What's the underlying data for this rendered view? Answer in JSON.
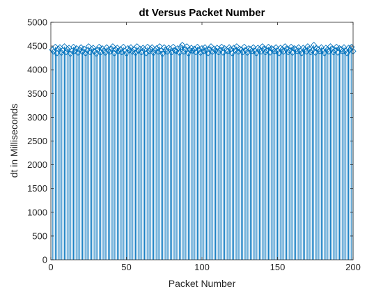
{
  "chart_data": {
    "type": "stem",
    "title": "dt Versus Packet Number",
    "xlabel": "Packet Number",
    "ylabel": "dt in Milliseconds",
    "xlim": [
      0,
      200
    ],
    "ylim": [
      0,
      5000
    ],
    "xticks": [
      0,
      50,
      100,
      150,
      200
    ],
    "yticks": [
      0,
      500,
      1000,
      1500,
      2000,
      2500,
      3000,
      3500,
      4000,
      4500,
      5000
    ],
    "marker": "diamond",
    "series_color": "#0072BD",
    "x": [
      1,
      2,
      3,
      4,
      5,
      6,
      7,
      8,
      9,
      10,
      11,
      12,
      13,
      14,
      15,
      16,
      17,
      18,
      19,
      20,
      21,
      22,
      23,
      24,
      25,
      26,
      27,
      28,
      29,
      30,
      31,
      32,
      33,
      34,
      35,
      36,
      37,
      38,
      39,
      40,
      41,
      42,
      43,
      44,
      45,
      46,
      47,
      48,
      49,
      50,
      51,
      52,
      53,
      54,
      55,
      56,
      57,
      58,
      59,
      60,
      61,
      62,
      63,
      64,
      65,
      66,
      67,
      68,
      69,
      70,
      71,
      72,
      73,
      74,
      75,
      76,
      77,
      78,
      79,
      80,
      81,
      82,
      83,
      84,
      85,
      86,
      87,
      88,
      89,
      90,
      91,
      92,
      93,
      94,
      95,
      96,
      97,
      98,
      99,
      100,
      101,
      102,
      103,
      104,
      105,
      106,
      107,
      108,
      109,
      110,
      111,
      112,
      113,
      114,
      115,
      116,
      117,
      118,
      119,
      120,
      121,
      122,
      123,
      124,
      125,
      126,
      127,
      128,
      129,
      130,
      131,
      132,
      133,
      134,
      135,
      136,
      137,
      138,
      139,
      140,
      141,
      142,
      143,
      144,
      145,
      146,
      147,
      148,
      149,
      150,
      151,
      152,
      153,
      154,
      155,
      156,
      157,
      158,
      159,
      160,
      161,
      162,
      163,
      164,
      165,
      166,
      167,
      168,
      169,
      170,
      171,
      172,
      173,
      174,
      175,
      176,
      177,
      178,
      179,
      180,
      181,
      182,
      183,
      184,
      185,
      186,
      187,
      188,
      189,
      190,
      191,
      192,
      193,
      194,
      195,
      196,
      197,
      198,
      199,
      200
    ],
    "y": [
      4420,
      4380,
      4480,
      4350,
      4440,
      4470,
      4360,
      4410,
      4490,
      4370,
      4430,
      4460,
      4340,
      4400,
      4480,
      4390,
      4450,
      4360,
      4420,
      4470,
      4380,
      4440,
      4350,
      4410,
      4490,
      4370,
      4430,
      4460,
      4390,
      4340,
      4420,
      4480,
      4370,
      4450,
      4400,
      4360,
      4470,
      4410,
      4380,
      4440,
      4490,
      4350,
      4420,
      4460,
      4390,
      4430,
      4370,
      4480,
      4400,
      4350,
      4450,
      4410,
      4470,
      4380,
      4430,
      4360,
      4490,
      4400,
      4440,
      4370,
      4460,
      4420,
      4350,
      4480,
      4390,
      4430,
      4470,
      4360,
      4410,
      4450,
      4380,
      4490,
      4400,
      4340,
      4470,
      4420,
      4380,
      4460,
      4430,
      4370,
      4480,
      4410,
      4390,
      4450,
      4360,
      4470,
      4520,
      4380,
      4430,
      4490,
      4350,
      4410,
      4460,
      4400,
      4440,
      4370,
      4480,
      4420,
      4360,
      4450,
      4390,
      4470,
      4410,
      4350,
      4430,
      4490,
      4380,
      4440,
      4400,
      4460,
      4370,
      4420,
      4480,
      4360,
      4450,
      4410,
      4390,
      4470,
      4430,
      4350,
      4460,
      4400,
      4490,
      4380,
      4440,
      4420,
      4370,
      4480,
      4410,
      4360,
      4450,
      4430,
      4390,
      4470,
      4400,
      4350,
      4460,
      4420,
      4380,
      4490,
      4440,
      4370,
      4410,
      4480,
      4360,
      4450,
      4430,
      4390,
      4470,
      4400,
      4350,
      4460,
      4420,
      4380,
      4490,
      4440,
      4370,
      4410,
      4480,
      4360,
      4450,
      4430,
      4390,
      4470,
      4400,
      4350,
      4460,
      4420,
      4380,
      4490,
      4440,
      4370,
      4410,
      4520,
      4360,
      4450,
      4430,
      4390,
      4470,
      4400,
      4350,
      4460,
      4420,
      4380,
      4490,
      4440,
      4370,
      4410,
      4480,
      4360,
      4450,
      4430,
      4390,
      4470,
      4400,
      4350,
      4460,
      4420,
      4480,
      4390
    ]
  }
}
